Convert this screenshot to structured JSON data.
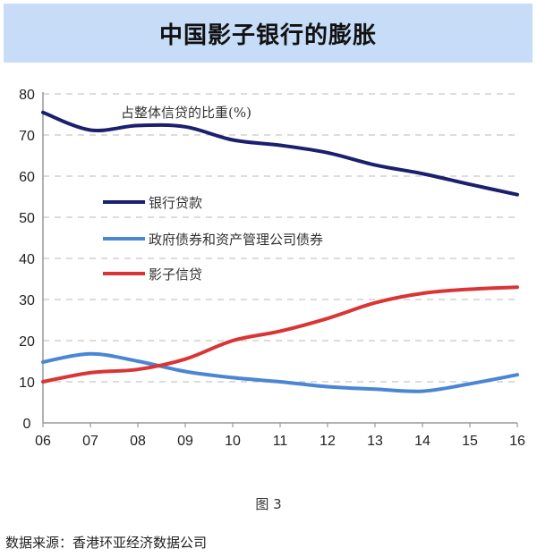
{
  "title": "中国影子银行的膨胀",
  "figure_label": "图 3",
  "source": "数据来源：香港环亚经济数据公司",
  "chart_data": {
    "type": "line",
    "title": "中国影子银行的膨胀",
    "annotation": "占整体信贷的比重(%)",
    "xlabel": "",
    "ylabel": "",
    "x": [
      "06",
      "07",
      "08",
      "09",
      "10",
      "11",
      "12",
      "13",
      "14",
      "15",
      "16"
    ],
    "ylim": [
      0,
      80
    ],
    "yticks": [
      0,
      10,
      20,
      30,
      40,
      50,
      60,
      70,
      80
    ],
    "grid": "horizontal-dashed",
    "legend_position": "inside-left",
    "series": [
      {
        "name": "银行贷款",
        "color": "#1a1f6e",
        "values": [
          75.5,
          71.2,
          72.3,
          72.0,
          68.8,
          67.5,
          65.7,
          62.7,
          60.6,
          58.0,
          55.5
        ]
      },
      {
        "name": "政府债券和资产管理公司债券",
        "color": "#4a86d4",
        "values": [
          14.8,
          16.8,
          15.0,
          12.5,
          11.0,
          10.0,
          8.8,
          8.2,
          7.7,
          9.5,
          11.7
        ]
      },
      {
        "name": "影子信贷",
        "color": "#d93535",
        "values": [
          10.0,
          12.2,
          13.0,
          15.5,
          20.0,
          22.3,
          25.4,
          29.2,
          31.5,
          32.5,
          33.0
        ]
      }
    ]
  }
}
